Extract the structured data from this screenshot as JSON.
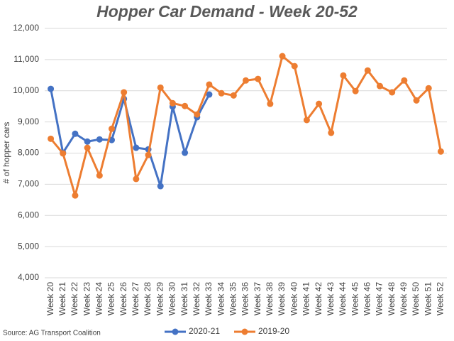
{
  "chart_data": {
    "type": "line",
    "title": "Hopper Car Demand - Week 20-52",
    "y_label": "# of hopper cars",
    "source": "Source: AG Transport Coalition",
    "categories": [
      "Week 20",
      "Week 21",
      "Week 22",
      "Week 23",
      "Week 24",
      "Week 25",
      "Week 26",
      "Week 27",
      "Week 28",
      "Week 29",
      "Week 30",
      "Week 31",
      "Week 32",
      "Week 33",
      "Week 34",
      "Week 35",
      "Week 36",
      "Week 37",
      "Week 38",
      "Week 39",
      "Week 40",
      "Week 41",
      "Week 42",
      "Week 43",
      "Week 44",
      "Week 45",
      "Week 46",
      "Week 47",
      "Week 48",
      "Week 49",
      "Week 50",
      "Week 51",
      "Week 52"
    ],
    "series": [
      {
        "name": "2020-21",
        "color": "#4472c4",
        "values": [
          10060,
          8010,
          8620,
          8370,
          8440,
          8420,
          9740,
          8170,
          8120,
          6940,
          9490,
          8010,
          9150,
          9880,
          null,
          null,
          null,
          null,
          null,
          null,
          null,
          null,
          null,
          null,
          null,
          null,
          null,
          null,
          null,
          null,
          null,
          null,
          null
        ]
      },
      {
        "name": "2019-20",
        "color": "#ed7d31",
        "values": [
          8460,
          7990,
          6640,
          8170,
          7280,
          8780,
          9950,
          7170,
          7940,
          10100,
          9600,
          9510,
          9240,
          10200,
          9920,
          9850,
          10330,
          10380,
          9580,
          11110,
          10790,
          9060,
          9580,
          8650,
          10490,
          9990,
          10650,
          10150,
          9950,
          10330,
          9690,
          10080,
          8050
        ]
      }
    ],
    "ylim": [
      4000,
      12000
    ],
    "yticks": [
      {
        "value": 4000,
        "label": "4,000"
      },
      {
        "value": 5000,
        "label": "5,000"
      },
      {
        "value": 6000,
        "label": "6,000"
      },
      {
        "value": 7000,
        "label": "7,000"
      },
      {
        "value": 8000,
        "label": "8,000"
      },
      {
        "value": 9000,
        "label": "9,000"
      },
      {
        "value": 10000,
        "label": "10,000"
      },
      {
        "value": 11000,
        "label": "11,000"
      },
      {
        "value": 12000,
        "label": "12,000"
      }
    ],
    "grid": true,
    "legend": "bottom"
  }
}
